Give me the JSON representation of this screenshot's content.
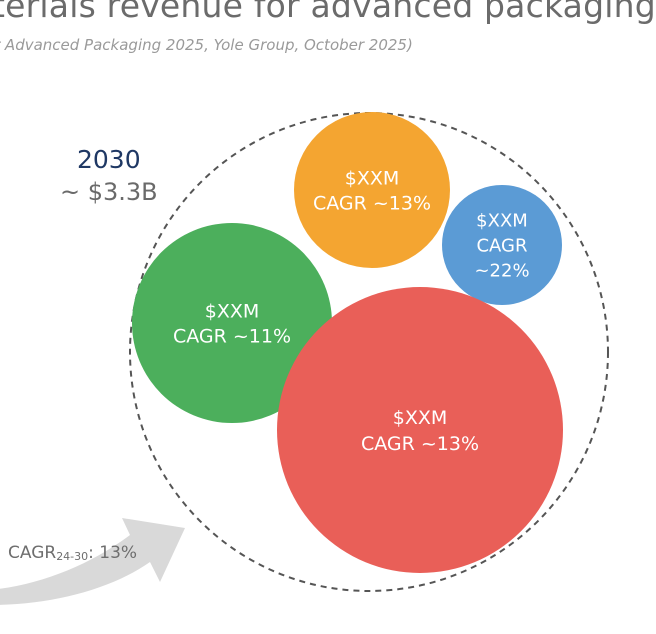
{
  "title": "terials revenue for advanced packaging",
  "subtitle": "r Advanced Packaging 2025, Yole Group, October 2025)",
  "year_label": "2030",
  "total_label": "~ $3.3B",
  "cagr": {
    "prefix": "CAGR",
    "period": "24-30",
    "suffix": ": 13%"
  },
  "colors": {
    "orange": "#f4a531",
    "blue": "#5b9bd5",
    "green": "#4caf5c",
    "red": "#e95f58",
    "arrow": "#d9d9d9",
    "dashed": "#555555"
  },
  "chart_data": {
    "type": "bubble",
    "year": "2030",
    "total": "~ $3.3B",
    "series": [
      {
        "value_label": "$XXM",
        "cagr_label": "CAGR ~13%",
        "color": "#f4a531"
      },
      {
        "value_label": "$XXM",
        "cagr_label": "CAGR ~22%",
        "color": "#5b9bd5"
      },
      {
        "value_label": "$XXM",
        "cagr_label": "CAGR ~11%",
        "color": "#4caf5c"
      },
      {
        "value_label": "$XXM",
        "cagr_label": "CAGR ~13%",
        "color": "#e95f58"
      }
    ]
  }
}
